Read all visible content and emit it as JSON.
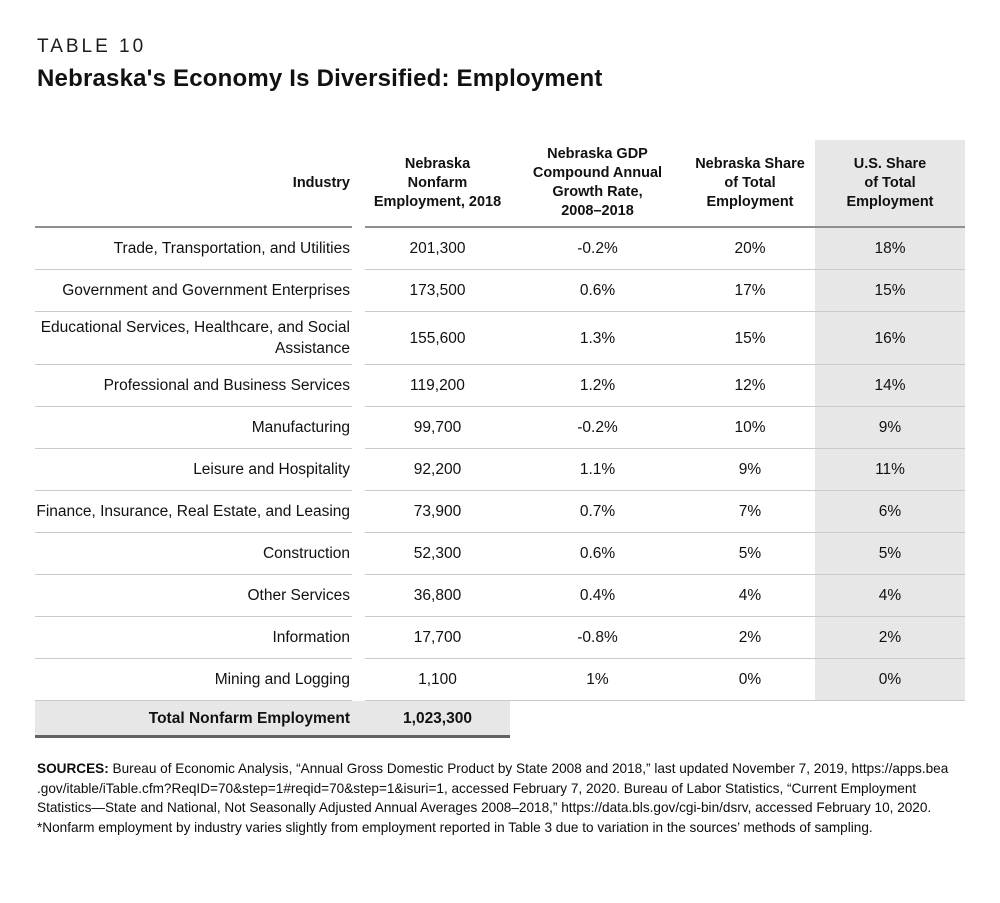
{
  "page": {
    "kicker": "TABLE 10",
    "title": "Nebraska's Economy Is Diversified: Employment"
  },
  "table": {
    "columns": [
      {
        "id": "industry",
        "label": "Industry"
      },
      {
        "id": "employment",
        "lines": [
          "Nebraska",
          "Nonfarm",
          "Employment, 2018"
        ]
      },
      {
        "id": "gdp_cagr",
        "lines": [
          "Nebraska GDP",
          "Compound Annual",
          "Growth Rate,",
          "2008–2018"
        ]
      },
      {
        "id": "ne_share",
        "lines": [
          "Nebraska Share",
          "of Total",
          "Employment"
        ]
      },
      {
        "id": "us_share",
        "lines": [
          "U.S. Share",
          "of Total",
          "Employment"
        ]
      }
    ],
    "rows": [
      {
        "industry": "Trade, Transportation, and Utilities",
        "employment": "201,300",
        "gdp_cagr": "-0.2%",
        "ne_share": "20%",
        "us_share": "18%"
      },
      {
        "industry": "Government and Government Enterprises",
        "employment": "173,500",
        "gdp_cagr": "0.6%",
        "ne_share": "17%",
        "us_share": "15%"
      },
      {
        "industry": "Educational Services, Healthcare, and Social Assistance",
        "employment": "155,600",
        "gdp_cagr": "1.3%",
        "ne_share": "15%",
        "us_share": "16%"
      },
      {
        "industry": "Professional and Business Services",
        "employment": "119,200",
        "gdp_cagr": "1.2%",
        "ne_share": "12%",
        "us_share": "14%"
      },
      {
        "industry": "Manufacturing",
        "employment": "99,700",
        "gdp_cagr": "-0.2%",
        "ne_share": "10%",
        "us_share": "9%"
      },
      {
        "industry": "Leisure and Hospitality",
        "employment": "92,200",
        "gdp_cagr": "1.1%",
        "ne_share": "9%",
        "us_share": "11%"
      },
      {
        "industry": "Finance, Insurance, Real Estate, and Leasing",
        "employment": "73,900",
        "gdp_cagr": "0.7%",
        "ne_share": "7%",
        "us_share": "6%"
      },
      {
        "industry": "Construction",
        "employment": "52,300",
        "gdp_cagr": "0.6%",
        "ne_share": "5%",
        "us_share": "5%"
      },
      {
        "industry": "Other Services",
        "employment": "36,800",
        "gdp_cagr": "0.4%",
        "ne_share": "4%",
        "us_share": "4%"
      },
      {
        "industry": "Information",
        "employment": "17,700",
        "gdp_cagr": "-0.8%",
        "ne_share": "2%",
        "us_share": "2%"
      },
      {
        "industry": "Mining and Logging",
        "employment": "1,100",
        "gdp_cagr": "1%",
        "ne_share": "0%",
        "us_share": "0%"
      }
    ],
    "total": {
      "label": "Total Nonfarm Employment",
      "value": "1,023,300"
    }
  },
  "footnotes": {
    "sources_label": "SOURCES:",
    "sources_text": " Bureau of Economic Analysis, “Annual Gross Domestic Product by State 2008 and 2018,” last updated November 7, 2019, https://apps.bea .gov/itable/iTable.cfm?ReqID=70&step=1#reqid=70&step=1&isuri=1, accessed February 7, 2020. Bureau of Labor Statistics, “Current Employment Statistics—State and National, Not Seasonally Adjusted Annual Averages 2008–2018,” https://data.bls.gov/cgi-bin/dsrv, accessed February 10, 2020.",
    "note": "*Nonfarm employment by industry varies slightly from employment reported in Table 3 due to variation in the sources’ methods of sampling."
  },
  "colors": {
    "shaded_column": "#e7e7e7",
    "row_rule": "#cbcbcb",
    "header_rule": "#8f8f8f",
    "total_rule": "#636363"
  }
}
